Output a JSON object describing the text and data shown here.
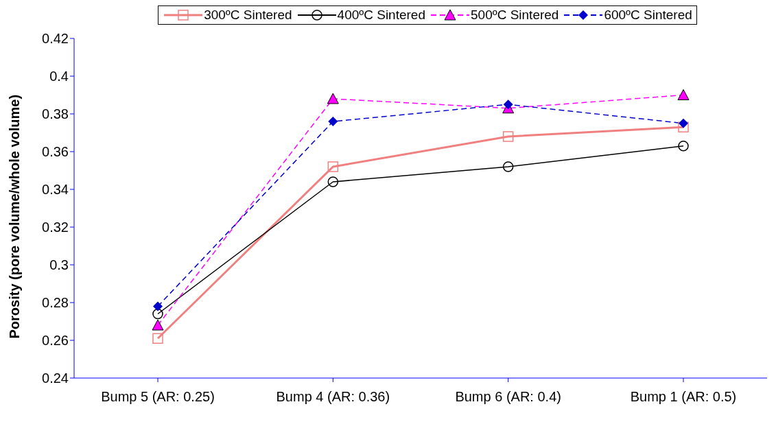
{
  "chart_data": {
    "type": "line",
    "ylabel": "Porosity (pore volume/whole volume)",
    "categories": [
      "Bump 5 (AR: 0.25)",
      "Bump 4 (AR: 0.36)",
      "Bump 6 (AR: 0.4)",
      "Bump 1 (AR: 0.5)"
    ],
    "series": [
      {
        "name": "300ºC Sintered",
        "color": "#f08080",
        "values": [
          0.261,
          0.352,
          0.368,
          0.373
        ],
        "marker": "square",
        "line_style": "solid"
      },
      {
        "name": "400ºC Sintered",
        "color": "#000000",
        "values": [
          0.274,
          0.344,
          0.352,
          0.363
        ],
        "marker": "circle",
        "line_style": "solid"
      },
      {
        "name": "500ºC Sintered",
        "color": "#ff00ff",
        "values": [
          0.268,
          0.388,
          0.383,
          0.39
        ],
        "marker": "triangle",
        "line_style": "dashed"
      },
      {
        "name": "600ºC Sintered",
        "color": "#0000cc",
        "values": [
          0.278,
          0.376,
          0.385,
          0.375
        ],
        "marker": "diamond",
        "line_style": "dashed"
      }
    ],
    "ylim": [
      0.24,
      0.42
    ],
    "yticks": [
      0.24,
      0.26,
      0.28,
      0.3,
      0.32,
      0.34,
      0.36,
      0.38,
      0.4,
      0.42
    ],
    "grid": false,
    "legend": "top"
  }
}
